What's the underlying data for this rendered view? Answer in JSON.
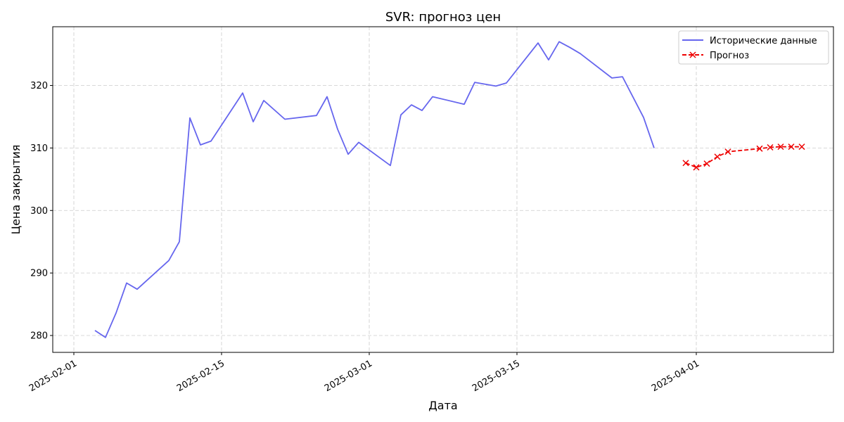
{
  "chart_data": {
    "type": "line",
    "title": "SVR: прогноз цен",
    "xlabel": "Дата",
    "ylabel": "Цена закрытия",
    "xlim": [
      "2025-01-30",
      "2025-04-14"
    ],
    "ylim": [
      277.3,
      329.4
    ],
    "grid": true,
    "legend_position": "top-right",
    "x_ticks": [
      "2025-02-01",
      "2025-02-15",
      "2025-03-01",
      "2025-03-15",
      "2025-04-01"
    ],
    "y_ticks": [
      280,
      290,
      300,
      310,
      320
    ],
    "series": [
      {
        "name": "Исторические данные",
        "color": "#6666ee",
        "style": "solid",
        "marker": "none",
        "points": [
          [
            "2025-02-03",
            280.8
          ],
          [
            "2025-02-04",
            279.7
          ],
          [
            "2025-02-05",
            283.6
          ],
          [
            "2025-02-06",
            288.4
          ],
          [
            "2025-02-07",
            287.4
          ],
          [
            "2025-02-10",
            292.0
          ],
          [
            "2025-02-11",
            295.0
          ],
          [
            "2025-02-12",
            314.8
          ],
          [
            "2025-02-13",
            310.5
          ],
          [
            "2025-02-14",
            311.1
          ],
          [
            "2025-02-17",
            318.8
          ],
          [
            "2025-02-18",
            314.2
          ],
          [
            "2025-02-19",
            317.6
          ],
          [
            "2025-02-21",
            314.6
          ],
          [
            "2025-02-24",
            315.2
          ],
          [
            "2025-02-25",
            318.2
          ],
          [
            "2025-02-26",
            313.0
          ],
          [
            "2025-02-27",
            309.0
          ],
          [
            "2025-02-28",
            310.9
          ],
          [
            "2025-03-03",
            307.2
          ],
          [
            "2025-03-04",
            315.3
          ],
          [
            "2025-03-05",
            316.9
          ],
          [
            "2025-03-06",
            316.0
          ],
          [
            "2025-03-07",
            318.2
          ],
          [
            "2025-03-10",
            317.0
          ],
          [
            "2025-03-11",
            320.5
          ],
          [
            "2025-03-13",
            319.9
          ],
          [
            "2025-03-14",
            320.4
          ],
          [
            "2025-03-17",
            326.8
          ],
          [
            "2025-03-18",
            324.1
          ],
          [
            "2025-03-19",
            327.0
          ],
          [
            "2025-03-20",
            326.1
          ],
          [
            "2025-03-21",
            325.1
          ],
          [
            "2025-03-24",
            321.2
          ],
          [
            "2025-03-25",
            321.4
          ],
          [
            "2025-03-27",
            314.9
          ],
          [
            "2025-03-28",
            310.0
          ]
        ]
      },
      {
        "name": "Прогноз",
        "color": "#ee0000",
        "style": "dashed",
        "marker": "x",
        "points": [
          [
            "2025-03-31",
            307.6
          ],
          [
            "2025-04-01",
            306.9
          ],
          [
            "2025-04-02",
            307.5
          ],
          [
            "2025-04-03",
            308.6
          ],
          [
            "2025-04-04",
            309.4
          ],
          [
            "2025-04-07",
            309.9
          ],
          [
            "2025-04-08",
            310.1
          ],
          [
            "2025-04-09",
            310.2
          ],
          [
            "2025-04-10",
            310.2
          ],
          [
            "2025-04-11",
            310.2
          ]
        ]
      }
    ]
  }
}
